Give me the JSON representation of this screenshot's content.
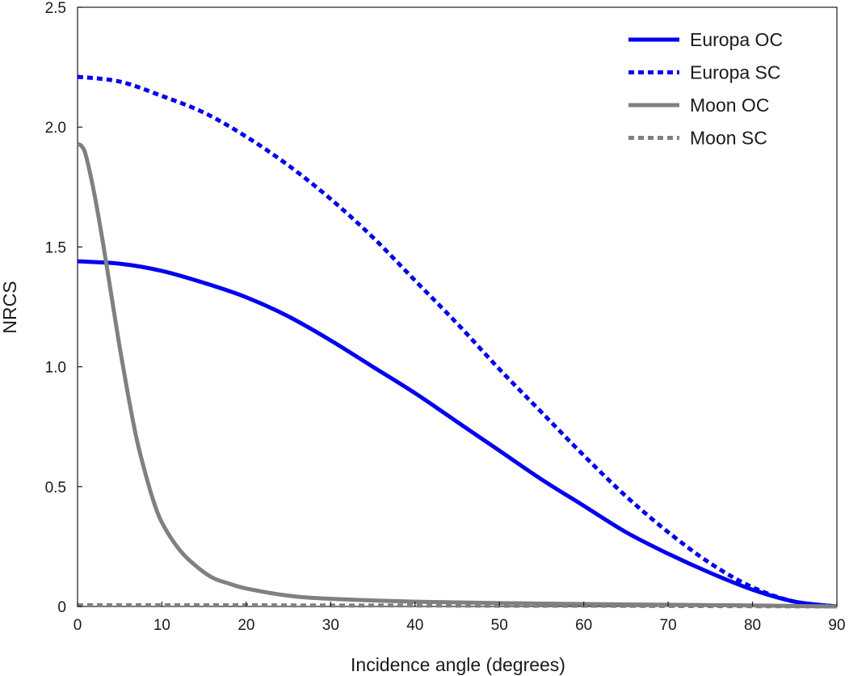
{
  "chart_data": {
    "type": "line",
    "xlabel": "Incidence angle (degrees)",
    "ylabel": "NRCS",
    "xlim": [
      0,
      90
    ],
    "ylim": [
      0,
      2.5
    ],
    "xticks": [
      0,
      10,
      20,
      30,
      40,
      50,
      60,
      70,
      80,
      90
    ],
    "yticks": [
      0,
      0.5,
      1.0,
      1.5,
      2.0,
      2.5
    ],
    "xtick_labels": [
      "0",
      "10",
      "20",
      "30",
      "40",
      "50",
      "60",
      "70",
      "80",
      "90"
    ],
    "ytick_labels": [
      "0",
      "0.5",
      "1.0",
      "1.5",
      "2.0",
      "2.5"
    ],
    "grid": false,
    "legend_position": "top-right",
    "series": [
      {
        "name": "Europa OC",
        "color": "#0000ee",
        "style": "solid",
        "x": [
          0,
          5,
          10,
          15,
          20,
          25,
          30,
          35,
          40,
          45,
          50,
          55,
          60,
          65,
          70,
          75,
          80,
          85,
          90
        ],
        "y": [
          1.44,
          1.43,
          1.4,
          1.35,
          1.29,
          1.21,
          1.11,
          1.0,
          0.89,
          0.77,
          0.65,
          0.53,
          0.42,
          0.31,
          0.22,
          0.14,
          0.07,
          0.02,
          0.0
        ]
      },
      {
        "name": "Europa SC",
        "color": "#0000ee",
        "style": "dotted",
        "x": [
          0,
          5,
          10,
          15,
          20,
          25,
          30,
          35,
          40,
          45,
          50,
          55,
          60,
          65,
          70,
          75,
          80,
          85,
          90
        ],
        "y": [
          2.21,
          2.19,
          2.13,
          2.06,
          1.96,
          1.84,
          1.7,
          1.54,
          1.36,
          1.18,
          0.99,
          0.81,
          0.63,
          0.46,
          0.31,
          0.18,
          0.08,
          0.02,
          0.0
        ]
      },
      {
        "name": "Moon OC",
        "color": "#808080",
        "style": "solid",
        "x": [
          0,
          0.5,
          1,
          2,
          3,
          4,
          5,
          6,
          7,
          8,
          9,
          10,
          12,
          14,
          16,
          18,
          20,
          25,
          30,
          40,
          50,
          60,
          70,
          80,
          90
        ],
        "y": [
          1.93,
          1.92,
          1.88,
          1.72,
          1.52,
          1.3,
          1.08,
          0.88,
          0.7,
          0.56,
          0.44,
          0.35,
          0.24,
          0.17,
          0.12,
          0.095,
          0.075,
          0.045,
          0.032,
          0.02,
          0.014,
          0.01,
          0.007,
          0.004,
          0.0
        ]
      },
      {
        "name": "Moon SC",
        "color": "#808080",
        "style": "dotted",
        "x": [
          0,
          10,
          20,
          30,
          40,
          50,
          60,
          70,
          80,
          90
        ],
        "y": [
          0.005,
          0.005,
          0.005,
          0.004,
          0.004,
          0.003,
          0.003,
          0.002,
          0.001,
          0.0
        ]
      }
    ]
  }
}
